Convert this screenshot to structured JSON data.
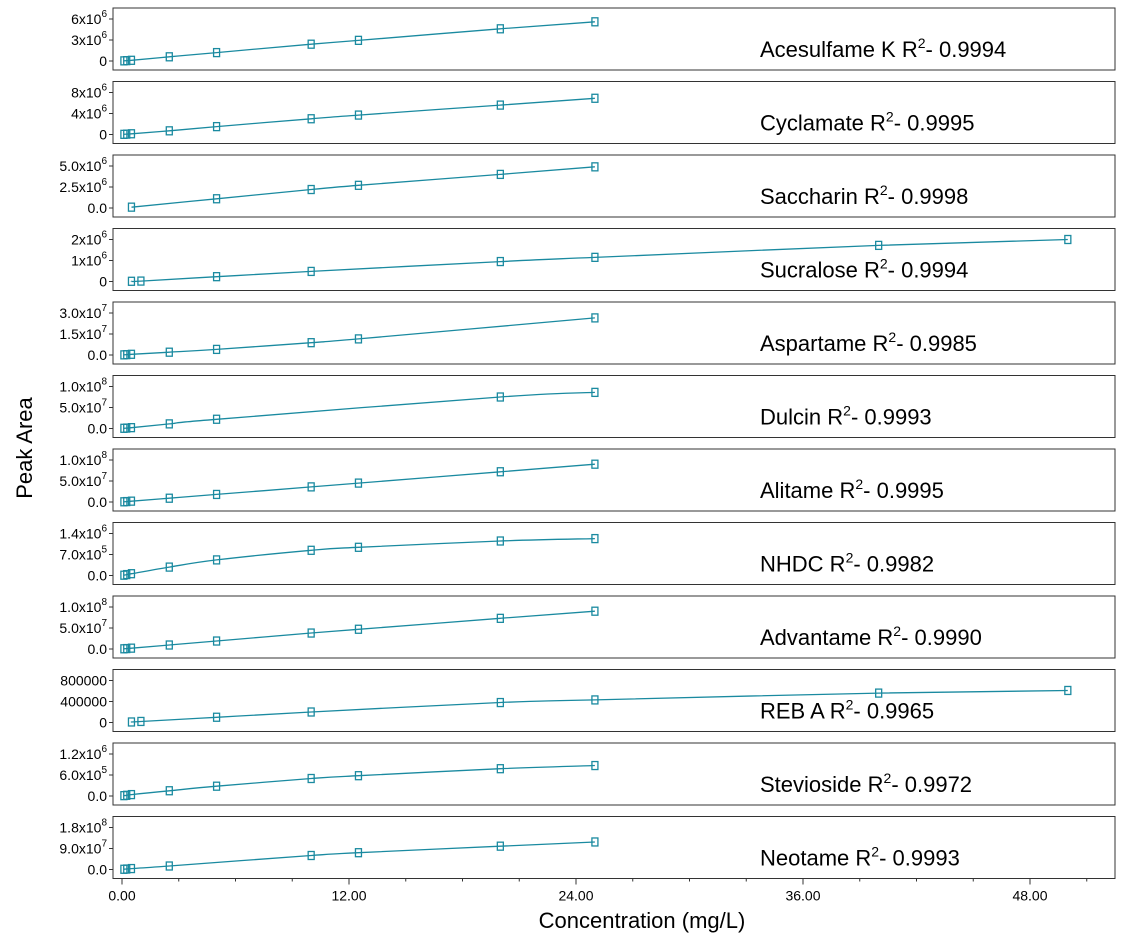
{
  "chart_data": {
    "type": "scatter",
    "ylabel": "Peak Area",
    "xlabel": "Concentration (mg/L)",
    "xlim": [
      0,
      51
    ],
    "x_ticks": [
      "0.00",
      "12.00",
      "24.00",
      "36.00",
      "48.00"
    ],
    "x_tick_values": [
      0,
      12,
      24,
      36,
      48
    ],
    "series_color": "#1a8aa0",
    "panels": [
      {
        "name": "Acesulfame K",
        "r2": "0.9994",
        "ymax": 6000000,
        "y_ticks": [
          {
            "v": 6000000,
            "m": "6x10",
            "e": "6"
          },
          {
            "v": 3000000,
            "m": "3x10",
            "e": "6"
          },
          {
            "v": 0,
            "m": "0",
            "e": ""
          }
        ],
        "points": [
          [
            0.1,
            20000
          ],
          [
            0.25,
            50000
          ],
          [
            0.5,
            100000
          ],
          [
            2.5,
            600000
          ],
          [
            5,
            1200000
          ],
          [
            10,
            2400000
          ],
          [
            12.5,
            2950000
          ],
          [
            20,
            4600000
          ],
          [
            25,
            5600000
          ]
        ]
      },
      {
        "name": "Cyclamate",
        "r2": "0.9995",
        "ymax": 8000000,
        "y_ticks": [
          {
            "v": 8000000,
            "m": "8x10",
            "e": "6"
          },
          {
            "v": 4000000,
            "m": "4x10",
            "e": "6"
          },
          {
            "v": 0,
            "m": "0",
            "e": ""
          }
        ],
        "points": [
          [
            0.1,
            30000
          ],
          [
            0.25,
            70000
          ],
          [
            0.5,
            140000
          ],
          [
            2.5,
            700000
          ],
          [
            5,
            1500000
          ],
          [
            10,
            3000000
          ],
          [
            12.5,
            3700000
          ],
          [
            20,
            5600000
          ],
          [
            25,
            6900000
          ]
        ]
      },
      {
        "name": "Saccharin",
        "r2": "0.9998",
        "ymax": 5000000,
        "y_ticks": [
          {
            "v": 5000000,
            "m": "5.0x10",
            "e": "6"
          },
          {
            "v": 2500000,
            "m": "2.5x10",
            "e": "6"
          },
          {
            "v": 0,
            "m": "0.0",
            "e": ""
          }
        ],
        "points": [
          [
            0.5,
            100000
          ],
          [
            5,
            1100000
          ],
          [
            10,
            2200000
          ],
          [
            12.5,
            2700000
          ],
          [
            20,
            4000000
          ],
          [
            25,
            4900000
          ]
        ]
      },
      {
        "name": "Sucralose",
        "r2": "0.9994",
        "ymax": 2000000,
        "y_ticks": [
          {
            "v": 2000000,
            "m": "2x10",
            "e": "6"
          },
          {
            "v": 1000000,
            "m": "1x10",
            "e": "6"
          },
          {
            "v": 0,
            "m": "0",
            "e": ""
          }
        ],
        "points": [
          [
            0.5,
            10000
          ],
          [
            1,
            20000
          ],
          [
            5,
            230000
          ],
          [
            10,
            480000
          ],
          [
            20,
            950000
          ],
          [
            25,
            1150000
          ],
          [
            40,
            1720000
          ],
          [
            50,
            2000000
          ]
        ]
      },
      {
        "name": "Aspartame",
        "r2": "0.9985",
        "ymax": 30000000,
        "y_ticks": [
          {
            "v": 30000000,
            "m": "3.0x10",
            "e": "7"
          },
          {
            "v": 15000000,
            "m": "1.5x10",
            "e": "7"
          },
          {
            "v": 0,
            "m": "0.0",
            "e": ""
          }
        ],
        "points": [
          [
            0.1,
            100000
          ],
          [
            0.25,
            250000
          ],
          [
            0.5,
            500000
          ],
          [
            2.5,
            2000000
          ],
          [
            5,
            4000000
          ],
          [
            10,
            8800000
          ],
          [
            12.5,
            11500000
          ],
          [
            25,
            26500000
          ]
        ]
      },
      {
        "name": "Dulcin",
        "r2": "0.9993",
        "ymax": 100000000,
        "y_ticks": [
          {
            "v": 100000000,
            "m": "1.0x10",
            "e": "8"
          },
          {
            "v": 50000000,
            "m": "5.0x10",
            "e": "7"
          },
          {
            "v": 0,
            "m": "0.0",
            "e": ""
          }
        ],
        "points": [
          [
            0.1,
            500000
          ],
          [
            0.25,
            1000000
          ],
          [
            0.5,
            2000000
          ],
          [
            2.5,
            11000000
          ],
          [
            5,
            22000000
          ],
          [
            20,
            75000000
          ],
          [
            25,
            86000000
          ]
        ]
      },
      {
        "name": "Alitame",
        "r2": "0.9995",
        "ymax": 100000000,
        "y_ticks": [
          {
            "v": 100000000,
            "m": "1.0x10",
            "e": "8"
          },
          {
            "v": 50000000,
            "m": "5.0x10",
            "e": "7"
          },
          {
            "v": 0,
            "m": "0.0",
            "e": ""
          }
        ],
        "points": [
          [
            0.1,
            500000
          ],
          [
            0.25,
            1000000
          ],
          [
            0.5,
            2000000
          ],
          [
            2.5,
            9000000
          ],
          [
            5,
            18000000
          ],
          [
            10,
            36000000
          ],
          [
            12.5,
            45000000
          ],
          [
            20,
            72000000
          ],
          [
            25,
            90000000
          ]
        ]
      },
      {
        "name": "NHDC",
        "r2": "0.9982",
        "ymax": 1400000,
        "y_ticks": [
          {
            "v": 1400000,
            "m": "1.4x10",
            "e": "6"
          },
          {
            "v": 700000,
            "m": "7.0x10",
            "e": "5"
          },
          {
            "v": 0,
            "m": "0.0",
            "e": ""
          }
        ],
        "points": [
          [
            0.1,
            10000
          ],
          [
            0.25,
            30000
          ],
          [
            0.5,
            60000
          ],
          [
            2.5,
            280000
          ],
          [
            5,
            520000
          ],
          [
            10,
            840000
          ],
          [
            12.5,
            940000
          ],
          [
            20,
            1150000
          ],
          [
            25,
            1230000
          ]
        ]
      },
      {
        "name": "Advantame",
        "r2": "0.9990",
        "ymax": 100000000,
        "y_ticks": [
          {
            "v": 100000000,
            "m": "1.0x10",
            "e": "8"
          },
          {
            "v": 50000000,
            "m": "5.0x10",
            "e": "7"
          },
          {
            "v": 0,
            "m": "0.0",
            "e": ""
          }
        ],
        "points": [
          [
            0.1,
            500000
          ],
          [
            0.25,
            1000000
          ],
          [
            0.5,
            2000000
          ],
          [
            2.5,
            9500000
          ],
          [
            5,
            19000000
          ],
          [
            10,
            38000000
          ],
          [
            12.5,
            47000000
          ],
          [
            20,
            73000000
          ],
          [
            25,
            90000000
          ]
        ]
      },
      {
        "name": "REB A",
        "r2": "0.9965",
        "ymax": 800000,
        "y_ticks": [
          {
            "v": 800000,
            "m": "800000",
            "e": ""
          },
          {
            "v": 400000,
            "m": "400000",
            "e": ""
          },
          {
            "v": 0,
            "m": "0",
            "e": ""
          }
        ],
        "points": [
          [
            0.5,
            10000
          ],
          [
            1,
            20000
          ],
          [
            5,
            100000
          ],
          [
            10,
            200000
          ],
          [
            20,
            380000
          ],
          [
            25,
            430000
          ],
          [
            40,
            560000
          ],
          [
            50,
            610000
          ]
        ]
      },
      {
        "name": "Stevioside",
        "r2": "0.9972",
        "ymax": 1200000,
        "y_ticks": [
          {
            "v": 1200000,
            "m": "1.2x10",
            "e": "6"
          },
          {
            "v": 600000,
            "m": "6.0x10",
            "e": "5"
          },
          {
            "v": 0,
            "m": "0.0",
            "e": ""
          }
        ],
        "points": [
          [
            0.1,
            10000
          ],
          [
            0.25,
            20000
          ],
          [
            0.5,
            40000
          ],
          [
            2.5,
            150000
          ],
          [
            5,
            280000
          ],
          [
            10,
            500000
          ],
          [
            12.5,
            580000
          ],
          [
            20,
            780000
          ],
          [
            25,
            870000
          ]
        ]
      },
      {
        "name": "Neotame",
        "r2": "0.9993",
        "ymax": 180000000,
        "y_ticks": [
          {
            "v": 180000000,
            "m": "1.8x10",
            "e": "8"
          },
          {
            "v": 90000000,
            "m": "9.0x10",
            "e": "7"
          },
          {
            "v": 0,
            "m": "0.0",
            "e": ""
          }
        ],
        "points": [
          [
            0.1,
            1000000
          ],
          [
            0.25,
            2000000
          ],
          [
            0.5,
            4000000
          ],
          [
            2.5,
            15000000
          ],
          [
            10,
            60000000
          ],
          [
            12.5,
            72000000
          ],
          [
            20,
            100000000
          ],
          [
            25,
            118000000
          ]
        ]
      }
    ]
  }
}
